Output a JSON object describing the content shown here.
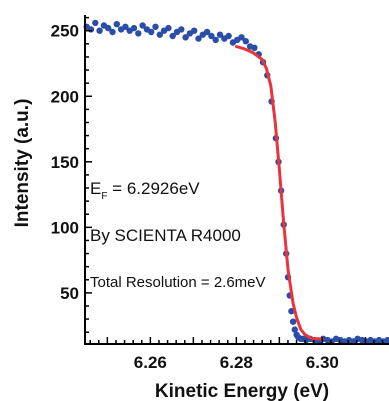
{
  "chart_data": {
    "type": "scatter",
    "title": "",
    "xlabel": "Kinetic Energy (eV)",
    "ylabel": "Intensity (a.u.)",
    "xlim": [
      6.2448,
      6.3155
    ],
    "ylim": [
      11,
      262
    ],
    "x_ticks": [
      6.26,
      6.28,
      6.3
    ],
    "x_tick_labels": [
      "6.26",
      "6.28",
      "6.30"
    ],
    "y_ticks": [
      50,
      100,
      150,
      200,
      250
    ],
    "y_tick_labels": [
      "50",
      "100",
      "150",
      "200",
      "250"
    ],
    "grid": false,
    "legend": "none",
    "annotations": {
      "fermi_prefix": "E",
      "fermi_sub": "F",
      "fermi_value": " = 6.2926eV",
      "instrument": "By SCIENTA R4000",
      "resolution": "Total Resolution = 2.6meV"
    },
    "colors": {
      "data_points": "#2a4ea8",
      "fit_line": "#e8343c",
      "axes": "#000000"
    },
    "series": [
      {
        "kind": "points",
        "x": [
          6.2452,
          6.2462,
          6.2472,
          6.2482,
          6.2492,
          6.2502,
          6.2512,
          6.2522,
          6.2532,
          6.2542,
          6.2552,
          6.2562,
          6.2572,
          6.2582,
          6.2592,
          6.2602,
          6.2612,
          6.2622,
          6.2632,
          6.2642,
          6.2652,
          6.2662,
          6.2672,
          6.2682,
          6.2692,
          6.2702,
          6.2712,
          6.2722,
          6.2732,
          6.2742,
          6.2752,
          6.2762,
          6.2772,
          6.2782,
          6.2792,
          6.2802,
          6.2812,
          6.2822,
          6.2832,
          6.2842,
          6.2852,
          6.2862,
          6.2872,
          6.2882,
          6.2892,
          6.2898,
          6.2904,
          6.291,
          6.2916,
          6.292,
          6.2924,
          6.2928,
          6.2932,
          6.2936,
          6.294,
          6.2944,
          6.295,
          6.2956,
          6.2962,
          6.2972,
          6.2982,
          6.2992,
          6.3002,
          6.3012,
          6.3022,
          6.3032,
          6.3042,
          6.3052,
          6.3062,
          6.3072,
          6.3082,
          6.3092,
          6.3102,
          6.3112,
          6.3122,
          6.3132,
          6.3142,
          6.3152
        ],
        "y": [
          253,
          251,
          256,
          250,
          254,
          252,
          249,
          255,
          251,
          253,
          250,
          252,
          248,
          254,
          251,
          249,
          253,
          247,
          250,
          252,
          246,
          249,
          251,
          245,
          248,
          250,
          244,
          247,
          249,
          246,
          243,
          247,
          244,
          246,
          241,
          243,
          245,
          242,
          238,
          237,
          232,
          226,
          216,
          196,
          168,
          150,
          128,
          102,
          80,
          62,
          48,
          36,
          28,
          22,
          18,
          16,
          15,
          15,
          14,
          15,
          14,
          13,
          15,
          14,
          13,
          15,
          14,
          13,
          14,
          13,
          15,
          14,
          13,
          14,
          13,
          14,
          13,
          14
        ]
      },
      {
        "kind": "fit",
        "x": [
          6.28,
          6.282,
          6.284,
          6.286,
          6.287,
          6.288,
          6.289,
          6.29,
          6.291,
          6.292,
          6.2926,
          6.2932,
          6.294,
          6.295,
          6.296,
          6.297,
          6.298,
          6.299,
          6.3
        ],
        "y": [
          238,
          236,
          233,
          228,
          221,
          208,
          181,
          144,
          103,
          68,
          55,
          42,
          31,
          22,
          18,
          16,
          15,
          15,
          15
        ]
      }
    ]
  }
}
